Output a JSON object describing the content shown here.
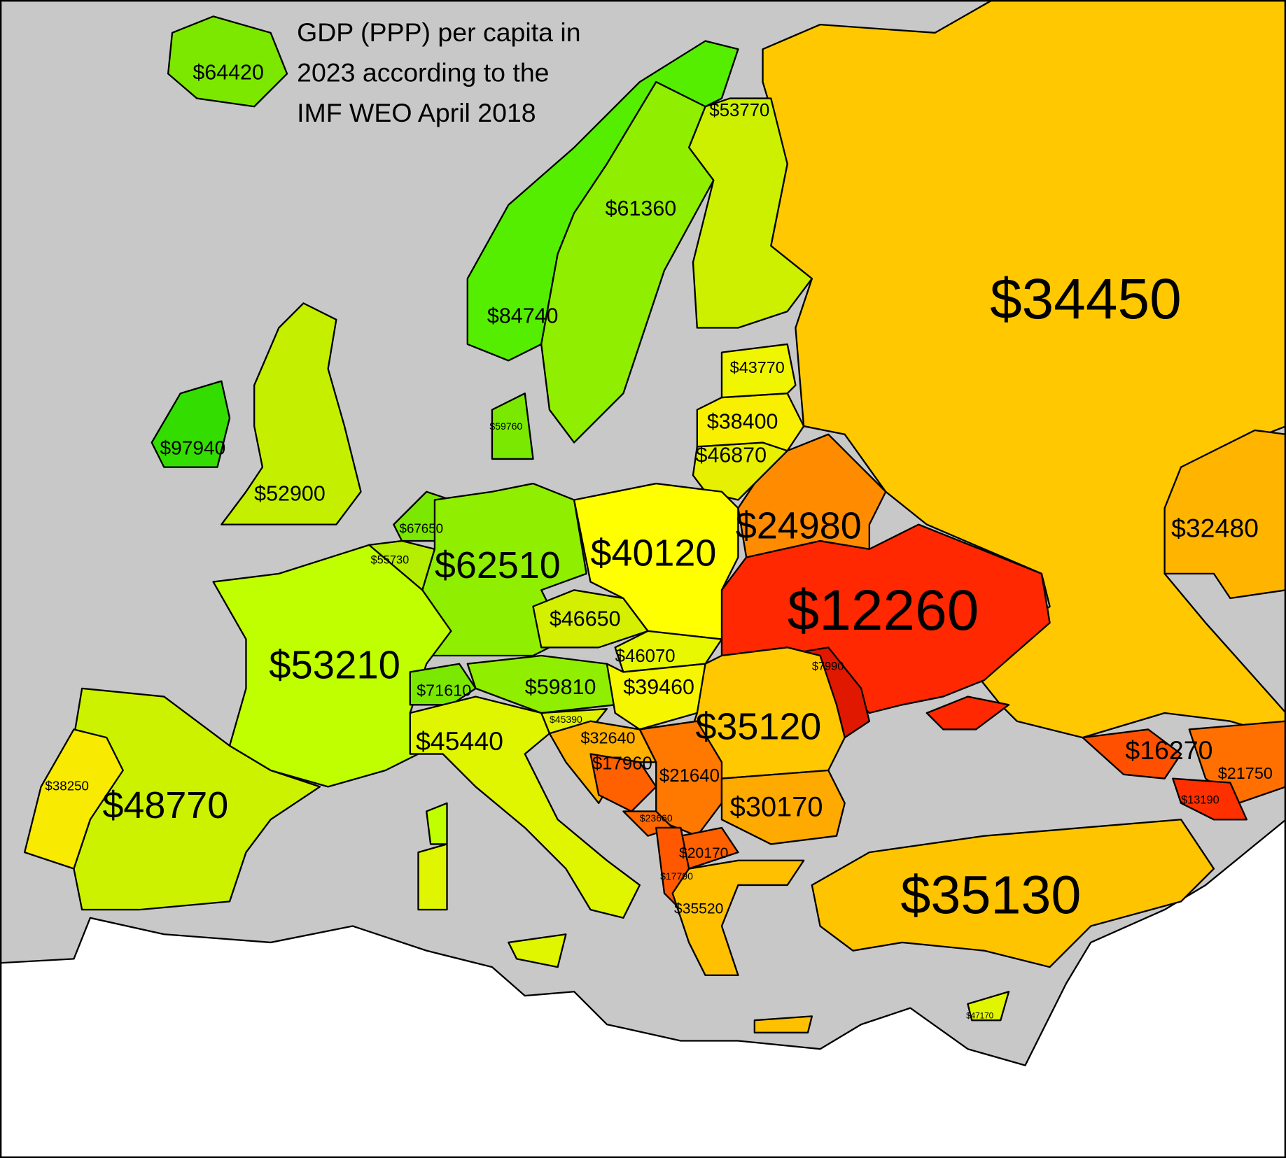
{
  "title": [
    "GDP (PPP) per capita in",
    "2023 according to the",
    "IMF WEO April 2018"
  ],
  "labels": [
    "$64420",
    "$53770",
    "$61360",
    "$84740",
    "$34450",
    "$43770",
    "$38400",
    "$97940",
    "$59760",
    "$46870",
    "$52900",
    "$67650",
    "$24980",
    "$32480",
    "$55730",
    "$62510",
    "$40120",
    "$12260",
    "$46650",
    "$46070",
    "$53210",
    "$7990",
    "$71610",
    "$59810",
    "$39460",
    "$45390",
    "$35120",
    "$45440",
    "$32640",
    "$16270",
    "$21750",
    "$17960",
    "$21640",
    "$38250",
    "$48770",
    "$30170",
    "$13190",
    "$23660",
    "$20170",
    "$17790",
    "$35130",
    "$35520",
    "$47170"
  ]
}
